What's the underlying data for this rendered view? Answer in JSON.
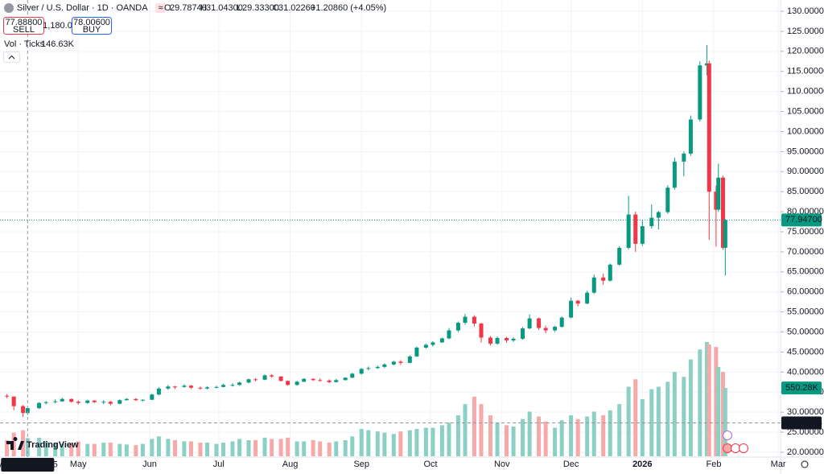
{
  "chart_data": {
    "type": "candlestick",
    "title": "Silver / U.S. Dollar · 1D · OANDA",
    "legend": {
      "keys": [
        "O",
        "H",
        "L",
        "C"
      ],
      "values": [
        "29.78740",
        "31.04300",
        "29.33300",
        "31.02260"
      ],
      "change": "+1.20860 (+4.05%)"
    },
    "trade": {
      "sell_price": "77.88800",
      "sell_label": "SELL",
      "spread": "1,180.0",
      "buy_price": "78.00600",
      "buy_label": "BUY"
    },
    "volume_indicator": {
      "name": "Vol · Ticks",
      "value_label": "146.63K"
    },
    "watermark": "TradingView",
    "x": [
      "2025-03-31",
      "2025-04-03",
      "2025-04-07",
      "2025-04-09",
      "2025-04-14",
      "2025-04-17",
      "2025-04-21",
      "2025-04-24",
      "2025-04-28",
      "2025-05-01",
      "2025-05-05",
      "2025-05-08",
      "2025-05-12",
      "2025-05-15",
      "2025-05-19",
      "2025-05-22",
      "2025-05-26",
      "2025-05-29",
      "2025-06-02",
      "2025-06-05",
      "2025-06-09",
      "2025-06-12",
      "2025-06-16",
      "2025-06-19",
      "2025-06-23",
      "2025-06-26",
      "2025-06-30",
      "2025-07-03",
      "2025-07-07",
      "2025-07-10",
      "2025-07-14",
      "2025-07-17",
      "2025-07-21",
      "2025-07-24",
      "2025-07-28",
      "2025-07-31",
      "2025-08-04",
      "2025-08-07",
      "2025-08-11",
      "2025-08-14",
      "2025-08-18",
      "2025-08-21",
      "2025-08-25",
      "2025-08-28",
      "2025-09-01",
      "2025-09-04",
      "2025-09-08",
      "2025-09-11",
      "2025-09-15",
      "2025-09-18",
      "2025-09-22",
      "2025-09-25",
      "2025-09-29",
      "2025-10-02",
      "2025-10-06",
      "2025-10-09",
      "2025-10-13",
      "2025-10-16",
      "2025-10-20",
      "2025-10-23",
      "2025-10-27",
      "2025-10-30",
      "2025-11-03",
      "2025-11-06",
      "2025-11-10",
      "2025-11-13",
      "2025-11-17",
      "2025-11-20",
      "2025-11-24",
      "2025-11-27",
      "2025-12-01",
      "2025-12-04",
      "2025-12-08",
      "2025-12-11",
      "2025-12-15",
      "2025-12-18",
      "2025-12-22",
      "2025-12-26",
      "2025-12-29",
      "2026-01-01",
      "2026-01-05",
      "2026-01-08",
      "2026-01-12",
      "2026-01-15",
      "2026-01-19",
      "2026-01-22",
      "2026-01-26",
      "2026-01-29",
      "2026-01-30",
      "2026-02-02",
      "2026-02-03",
      "2026-02-05",
      "2026-02-06"
    ],
    "open": [
      34.1,
      33.9,
      31.5,
      29.7874,
      31.0,
      32.3,
      32.5,
      32.7,
      33.3,
      32.6,
      32.3,
      32.9,
      32.5,
      32.6,
      32.1,
      33.0,
      33.3,
      33.0,
      33.1,
      34.4,
      35.9,
      36.4,
      36.3,
      36.6,
      36.1,
      35.9,
      36.2,
      36.3,
      36.8,
      36.8,
      37.4,
      38.2,
      38.1,
      39.2,
      38.9,
      37.8,
      36.8,
      37.6,
      38.3,
      38.0,
      37.9,
      37.5,
      38.0,
      38.6,
      39.6,
      40.8,
      41.0,
      41.3,
      41.9,
      42.6,
      42.3,
      43.9,
      46.1,
      46.8,
      47.4,
      48.4,
      50.4,
      52.3,
      53.8,
      52.1,
      48.6,
      47.1,
      48.5,
      47.9,
      48.3,
      50.9,
      53.4,
      51.0,
      50.4,
      51.3,
      53.6,
      57.8,
      57.1,
      59.8,
      63.6,
      62.8,
      66.8,
      71.0,
      79.3,
      72.0,
      76.4,
      78.5,
      79.9,
      86.0,
      92.5,
      94.5,
      103.0,
      116.5,
      117.0,
      85.0,
      80.5,
      88.5,
      71.0
    ],
    "high": [
      34.5,
      33.9,
      31.8,
      31.043,
      32.5,
      32.8,
      33.2,
      33.6,
      33.4,
      32.9,
      33.1,
      33.0,
      33.0,
      32.8,
      33.2,
      33.5,
      33.5,
      33.2,
      34.6,
      36.2,
      36.8,
      36.6,
      37.0,
      36.8,
      36.4,
      36.5,
      36.6,
      37.1,
      37.2,
      37.6,
      38.4,
      38.5,
      39.4,
      39.5,
      39.0,
      37.9,
      37.8,
      38.5,
      38.5,
      38.4,
      38.2,
      38.3,
      38.7,
      39.8,
      41.0,
      41.4,
      41.6,
      42.2,
      42.8,
      43.0,
      44.2,
      46.4,
      47.1,
      47.7,
      48.6,
      51.0,
      52.6,
      54.5,
      54.2,
      52.3,
      49.0,
      48.9,
      48.8,
      48.7,
      51.2,
      54.4,
      53.6,
      51.6,
      51.6,
      53.9,
      58.6,
      58.0,
      60.3,
      64.3,
      64.6,
      67.1,
      71.4,
      84.0,
      80.0,
      78.0,
      81.8,
      80.2,
      86.6,
      93.5,
      95.0,
      104.0,
      117.5,
      121.6,
      117.7,
      86.5,
      92.0,
      89.0,
      78.2
    ],
    "low": [
      33.5,
      30.5,
      28.8,
      29.333,
      30.8,
      31.9,
      32.2,
      32.6,
      32.4,
      31.9,
      32.1,
      32.3,
      32.0,
      31.7,
      32.0,
      32.9,
      32.8,
      32.7,
      33.0,
      34.2,
      35.6,
      35.8,
      36.1,
      35.8,
      35.6,
      35.7,
      35.9,
      36.2,
      36.4,
      36.6,
      37.2,
      37.7,
      38.0,
      38.6,
      37.6,
      36.6,
      36.6,
      37.5,
      37.8,
      37.6,
      37.2,
      37.4,
      37.9,
      38.5,
      39.4,
      40.4,
      40.8,
      41.0,
      41.7,
      41.8,
      42.2,
      43.8,
      45.9,
      46.4,
      47.3,
      48.2,
      50.0,
      51.8,
      51.4,
      47.4,
      46.6,
      46.8,
      47.3,
      47.5,
      48.1,
      50.7,
      50.5,
      49.7,
      50.0,
      51.1,
      53.4,
      56.4,
      56.9,
      59.5,
      61.8,
      62.6,
      66.5,
      70.6,
      70.0,
      71.5,
      75.8,
      75.6,
      79.5,
      85.5,
      88.8,
      94.0,
      102.5,
      114.0,
      73.0,
      71.3,
      80.0,
      70.5,
      64.1
    ],
    "close": [
      33.9,
      31.5,
      29.8,
      31.0226,
      32.3,
      32.5,
      32.7,
      33.3,
      32.6,
      32.3,
      32.9,
      32.5,
      32.6,
      32.1,
      33.0,
      33.3,
      33.0,
      33.1,
      34.4,
      35.9,
      36.4,
      36.3,
      36.6,
      36.1,
      35.9,
      36.2,
      36.3,
      36.8,
      36.8,
      37.4,
      38.2,
      38.1,
      39.2,
      38.9,
      37.8,
      36.8,
      37.6,
      38.3,
      38.0,
      37.9,
      37.5,
      38.0,
      38.6,
      39.6,
      40.8,
      41.0,
      41.3,
      41.9,
      42.6,
      42.3,
      43.9,
      46.1,
      46.8,
      47.4,
      48.4,
      50.4,
      52.3,
      53.8,
      52.1,
      48.6,
      47.1,
      48.5,
      47.9,
      48.3,
      50.9,
      53.4,
      51.0,
      50.4,
      51.3,
      53.6,
      57.8,
      57.1,
      59.8,
      63.6,
      62.8,
      66.8,
      71.0,
      79.3,
      72.0,
      76.4,
      78.5,
      79.9,
      86.0,
      92.5,
      94.5,
      103.0,
      116.5,
      117.0,
      85.0,
      80.5,
      88.5,
      71.0,
      77.947
    ],
    "volume": [
      130000,
      190000,
      210000,
      146630,
      150000,
      120000,
      110000,
      100000,
      110000,
      120000,
      100000,
      100000,
      110000,
      110000,
      100000,
      95000,
      90000,
      100000,
      140000,
      160000,
      140000,
      130000,
      120000,
      120000,
      110000,
      110000,
      100000,
      110000,
      120000,
      140000,
      130000,
      130000,
      150000,
      140000,
      140000,
      150000,
      120000,
      120000,
      130000,
      120000,
      110000,
      120000,
      130000,
      160000,
      220000,
      210000,
      200000,
      190000,
      180000,
      200000,
      210000,
      220000,
      230000,
      230000,
      250000,
      270000,
      330000,
      420000,
      480000,
      420000,
      330000,
      270000,
      250000,
      240000,
      300000,
      360000,
      320000,
      280000,
      230000,
      290000,
      330000,
      300000,
      320000,
      360000,
      330000,
      370000,
      420000,
      560000,
      620000,
      460000,
      540000,
      560000,
      600000,
      680000,
      640000,
      780000,
      860000,
      920000,
      900000,
      880000,
      720000,
      680000,
      550280
    ],
    "colors": {
      "up": "#089981",
      "down": "#f23645",
      "volume_up": "#8bd0c4",
      "volume_down": "#f7a9a9"
    },
    "ylim": [
      20,
      130
    ],
    "yticks": [
      {
        "value": 20,
        "label": "20.00000"
      },
      {
        "value": 25,
        "label": "25.00000"
      },
      {
        "value": 30,
        "label": "30.00000"
      },
      {
        "value": 35,
        "label": "35.00000"
      },
      {
        "value": 40,
        "label": "40.00000"
      },
      {
        "value": 45,
        "label": "45.00000"
      },
      {
        "value": 50,
        "label": "50.00000"
      },
      {
        "value": 55,
        "label": "55.00000"
      },
      {
        "value": 60,
        "label": "60.00000"
      },
      {
        "value": 65,
        "label": "65.00000"
      },
      {
        "value": 70,
        "label": "70.00000"
      },
      {
        "value": 75,
        "label": "75.00000"
      },
      {
        "value": 80,
        "label": "80.00000"
      },
      {
        "value": 85,
        "label": "85.00000"
      },
      {
        "value": 90,
        "label": "90.00000"
      },
      {
        "value": 95,
        "label": "95.00000"
      },
      {
        "value": 100,
        "label": "100.00000"
      },
      {
        "value": 105,
        "label": "105.00000"
      },
      {
        "value": 110,
        "label": "110.00000"
      },
      {
        "value": 115,
        "label": "115.00000"
      },
      {
        "value": 120,
        "label": "120.00000"
      },
      {
        "value": 125,
        "label": "125.00000"
      },
      {
        "value": 130,
        "label": "130.00000"
      }
    ],
    "xlim": [
      "2025-03-28",
      "2026-03-02"
    ],
    "xticks": [
      {
        "value": "2025-05-01",
        "label": "May"
      },
      {
        "value": "2025-06-01",
        "label": "Jun"
      },
      {
        "value": "2025-07-01",
        "label": "Jul"
      },
      {
        "value": "2025-08-01",
        "label": "Aug"
      },
      {
        "value": "2025-09-01",
        "label": "Sep"
      },
      {
        "value": "2025-10-01",
        "label": "Oct"
      },
      {
        "value": "2025-11-01",
        "label": "Nov"
      },
      {
        "value": "2025-12-01",
        "label": "Dec"
      },
      {
        "value": "2026-01-01",
        "label": "2026"
      },
      {
        "value": "2026-02-01",
        "label": "Feb"
      },
      {
        "value": "2026-03-01",
        "label": "Mar"
      }
    ],
    "grid": true,
    "last_price_label": "77.94700",
    "last_volume_label": "550.28K",
    "crosshair": {
      "x": "2025-04-09",
      "x_label": "Wed 09 Apr '25",
      "y": 27.33773,
      "y_label": "27.33773"
    }
  }
}
